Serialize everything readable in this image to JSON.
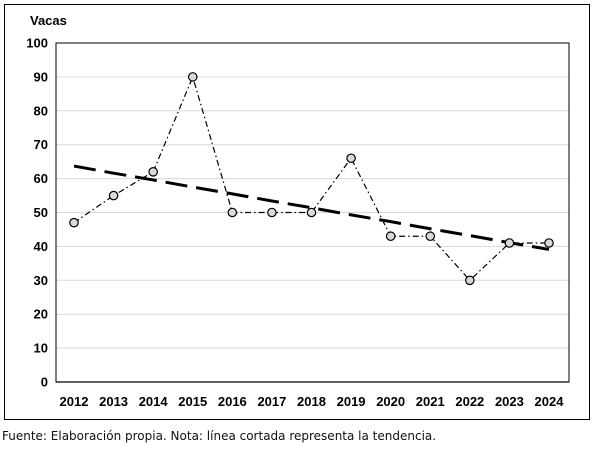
{
  "chart_data": {
    "type": "line",
    "ylabel": "Vacas",
    "ylim": [
      0,
      100
    ],
    "yticks": [
      0,
      10,
      20,
      30,
      40,
      50,
      60,
      70,
      80,
      90,
      100
    ],
    "categories": [
      "2012",
      "2013",
      "2014",
      "2015",
      "2016",
      "2017",
      "2018",
      "2019",
      "2020",
      "2021",
      "2022",
      "2023",
      "2024"
    ],
    "series": [
      {
        "values": [
          47,
          55,
          62,
          90,
          50,
          50,
          50,
          66,
          43,
          43,
          30,
          41,
          41
        ],
        "style": "dash-dot with circle markers"
      },
      {
        "values": [
          63.7,
          61.6,
          59.6,
          57.5,
          55.5,
          53.4,
          51.4,
          49.3,
          47.3,
          45.2,
          43.2,
          41.1,
          39.1
        ],
        "style": "long-dash trend"
      }
    ],
    "grid": true,
    "colors": {
      "line": "#000000",
      "marker_fill": "#d9d9d9",
      "grid": "#d9d9d9"
    }
  },
  "footer": {
    "source": "Fuente: Elaboración propia. Nota: línea cortada representa la tendencia."
  }
}
